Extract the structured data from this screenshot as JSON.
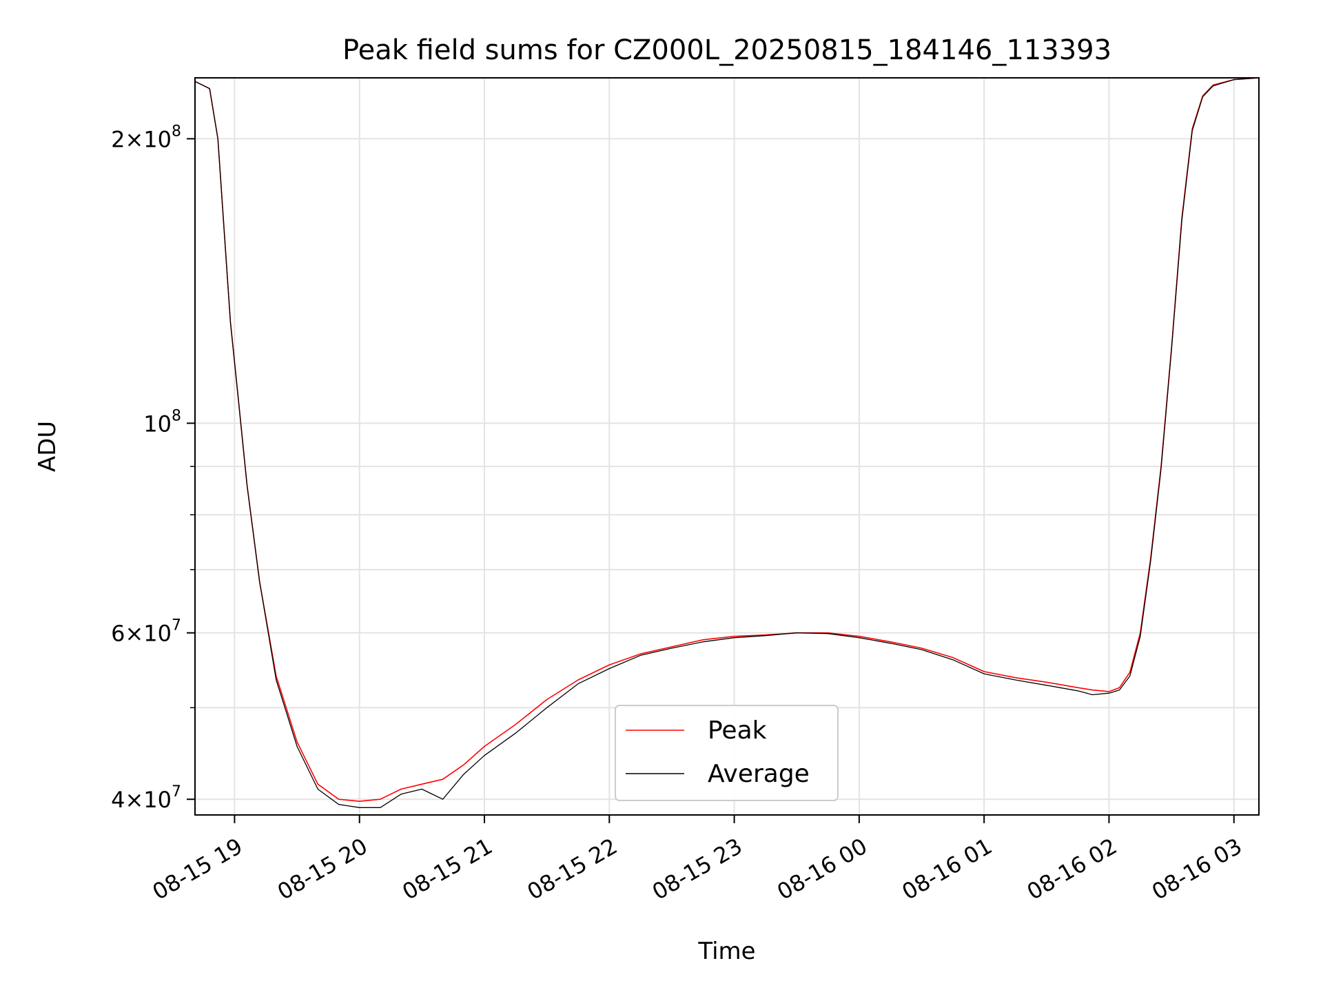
{
  "chart_data": {
    "type": "line",
    "title": "Peak field sums for CZ000L_20250815_184146_113393",
    "xlabel": "Time",
    "ylabel": "ADU",
    "yscale": "log",
    "xlim": [
      "2025-08-15 18:41",
      "2025-08-16 03:12"
    ],
    "ylim": [
      38500000,
      232000000
    ],
    "grid": true,
    "legend_position": "lower center",
    "x_ticks": [
      {
        "t": "2025-08-15 19:00",
        "label": "08-15 19"
      },
      {
        "t": "2025-08-15 20:00",
        "label": "08-15 20"
      },
      {
        "t": "2025-08-15 21:00",
        "label": "08-15 21"
      },
      {
        "t": "2025-08-15 22:00",
        "label": "08-15 22"
      },
      {
        "t": "2025-08-15 23:00",
        "label": "08-15 23"
      },
      {
        "t": "2025-08-16 00:00",
        "label": "08-16 00"
      },
      {
        "t": "2025-08-16 01:00",
        "label": "08-16 01"
      },
      {
        "t": "2025-08-16 02:00",
        "label": "08-16 02"
      },
      {
        "t": "2025-08-16 03:00",
        "label": "08-16 03"
      }
    ],
    "y_ticks": [
      {
        "value": 40000000,
        "base": "4",
        "exp": "7"
      },
      {
        "value": 60000000,
        "base": "6",
        "exp": "7"
      },
      {
        "value": 100000000,
        "base": "",
        "exp": "8"
      },
      {
        "value": 200000000,
        "base": "2",
        "exp": "8"
      }
    ],
    "y_minor_ticks": [
      50000000,
      70000000,
      80000000,
      90000000
    ],
    "series": [
      {
        "name": "Peak",
        "color": "#ff0000",
        "x": [
          "2025-08-15 18:41",
          "2025-08-15 18:48",
          "2025-08-15 18:52",
          "2025-08-15 18:55",
          "2025-08-15 18:58",
          "2025-08-15 19:02",
          "2025-08-15 19:06",
          "2025-08-15 19:12",
          "2025-08-15 19:20",
          "2025-08-15 19:30",
          "2025-08-15 19:40",
          "2025-08-15 19:50",
          "2025-08-15 20:00",
          "2025-08-15 20:10",
          "2025-08-15 20:20",
          "2025-08-15 20:30",
          "2025-08-15 20:40",
          "2025-08-15 20:50",
          "2025-08-15 21:00",
          "2025-08-15 21:15",
          "2025-08-15 21:30",
          "2025-08-15 21:45",
          "2025-08-15 22:00",
          "2025-08-15 22:15",
          "2025-08-15 22:30",
          "2025-08-15 22:45",
          "2025-08-15 23:00",
          "2025-08-15 23:15",
          "2025-08-15 23:30",
          "2025-08-15 23:45",
          "2025-08-16 00:00",
          "2025-08-16 00:15",
          "2025-08-16 00:30",
          "2025-08-16 00:45",
          "2025-08-16 01:00",
          "2025-08-16 01:15",
          "2025-08-16 01:30",
          "2025-08-16 01:45",
          "2025-08-16 01:52",
          "2025-08-16 02:00",
          "2025-08-16 02:05",
          "2025-08-16 02:10",
          "2025-08-16 02:15",
          "2025-08-16 02:20",
          "2025-08-16 02:25",
          "2025-08-16 02:30",
          "2025-08-16 02:35",
          "2025-08-16 02:40",
          "2025-08-16 02:45",
          "2025-08-16 02:50",
          "2025-08-16 03:00",
          "2025-08-16 03:12"
        ],
        "values": [
          230000000,
          226000000,
          200000000,
          160000000,
          128000000,
          105000000,
          86000000,
          68000000,
          54000000,
          46000000,
          41500000,
          40000000,
          39800000,
          40000000,
          41000000,
          41500000,
          42000000,
          43500000,
          45500000,
          48000000,
          51000000,
          53500000,
          55500000,
          57000000,
          58000000,
          59000000,
          59500000,
          59700000,
          60000000,
          60000000,
          59500000,
          58700000,
          57800000,
          56500000,
          54600000,
          53800000,
          53200000,
          52500000,
          52200000,
          52000000,
          52500000,
          54500000,
          60000000,
          72000000,
          90000000,
          120000000,
          165000000,
          205000000,
          222000000,
          228000000,
          231000000,
          232000000
        ]
      },
      {
        "name": "Average",
        "color": "#000000",
        "x": [
          "2025-08-15 18:41",
          "2025-08-15 18:48",
          "2025-08-15 18:52",
          "2025-08-15 18:55",
          "2025-08-15 18:58",
          "2025-08-15 19:02",
          "2025-08-15 19:06",
          "2025-08-15 19:12",
          "2025-08-15 19:20",
          "2025-08-15 19:30",
          "2025-08-15 19:40",
          "2025-08-15 19:50",
          "2025-08-15 20:00",
          "2025-08-15 20:10",
          "2025-08-15 20:20",
          "2025-08-15 20:30",
          "2025-08-15 20:40",
          "2025-08-15 20:50",
          "2025-08-15 21:00",
          "2025-08-15 21:15",
          "2025-08-15 21:30",
          "2025-08-15 21:45",
          "2025-08-15 22:00",
          "2025-08-15 22:15",
          "2025-08-15 22:30",
          "2025-08-15 22:45",
          "2025-08-15 23:00",
          "2025-08-15 23:15",
          "2025-08-15 23:30",
          "2025-08-15 23:45",
          "2025-08-16 00:00",
          "2025-08-16 00:15",
          "2025-08-16 00:30",
          "2025-08-16 00:45",
          "2025-08-16 01:00",
          "2025-08-16 01:15",
          "2025-08-16 01:30",
          "2025-08-16 01:45",
          "2025-08-16 01:52",
          "2025-08-16 02:00",
          "2025-08-16 02:05",
          "2025-08-16 02:10",
          "2025-08-16 02:15",
          "2025-08-16 02:20",
          "2025-08-16 02:25",
          "2025-08-16 02:30",
          "2025-08-16 02:35",
          "2025-08-16 02:40",
          "2025-08-16 02:45",
          "2025-08-16 02:50",
          "2025-08-16 03:00",
          "2025-08-16 03:12"
        ],
        "values": [
          230000000,
          226000000,
          200000000,
          160000000,
          128000000,
          105000000,
          86000000,
          68000000,
          53500000,
          45500000,
          41000000,
          39500000,
          39200000,
          39200000,
          40500000,
          41000000,
          40000000,
          42500000,
          44500000,
          47000000,
          50000000,
          53000000,
          55000000,
          56800000,
          57800000,
          58700000,
          59300000,
          59600000,
          60000000,
          59900000,
          59300000,
          58500000,
          57600000,
          56200000,
          54300000,
          53500000,
          52800000,
          52100000,
          51600000,
          51800000,
          52200000,
          54000000,
          59500000,
          71500000,
          89500000,
          119500000,
          164000000,
          204000000,
          221500000,
          227500000,
          231000000,
          232000000
        ]
      }
    ]
  }
}
